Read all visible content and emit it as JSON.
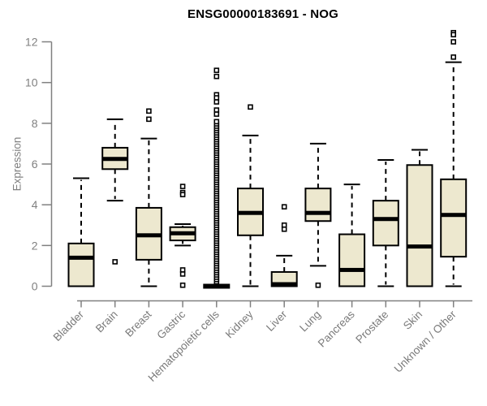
{
  "title": "ENSG00000183691 - NOG",
  "chart_data": {
    "type": "boxplot",
    "title": "ENSG00000183691 - NOG",
    "xlabel": "",
    "ylabel": "Expression",
    "ylim": [
      0,
      12
    ],
    "y_ticks": [
      0,
      2,
      4,
      6,
      8,
      10,
      12
    ],
    "grid": "off",
    "legend": "none",
    "categories": [
      "Bladder",
      "Brain",
      "Breast",
      "Gastric",
      "Hematopoietic cells",
      "Kidney",
      "Liver",
      "Lung",
      "Pancreas",
      "Prostate",
      "Skin",
      "Unknown / Other"
    ],
    "series": [
      {
        "category": "Bladder",
        "whisker_low": 0,
        "q1": 0,
        "median": 1.4,
        "q3": 2.1,
        "whisker_high": 5.3,
        "outliers": []
      },
      {
        "category": "Brain",
        "whisker_low": 4.2,
        "q1": 5.75,
        "median": 6.25,
        "q3": 6.8,
        "whisker_high": 8.2,
        "outliers": [
          1.2
        ]
      },
      {
        "category": "Breast",
        "whisker_low": 0,
        "q1": 1.3,
        "median": 2.5,
        "q3": 3.85,
        "whisker_high": 7.25,
        "outliers": [
          8.6,
          8.2
        ]
      },
      {
        "category": "Gastric",
        "whisker_low": 2.0,
        "q1": 2.25,
        "median": 2.6,
        "q3": 2.9,
        "whisker_high": 3.05,
        "outliers": [
          4.9,
          4.6,
          4.5,
          0.8,
          0.6,
          0.05
        ]
      },
      {
        "category": "Hematopoietic cells",
        "whisker_low": 0,
        "q1": 0,
        "median": 0,
        "q3": 0,
        "whisker_high": 0,
        "outliers": [
          10.6,
          10.3,
          9.4,
          9.25,
          9.05,
          8.65,
          8.45
        ],
        "outlier_strip": {
          "min": 0.22,
          "max": 8.08,
          "count": 72,
          "note": "dense unreadable column of overlapping outlier squares"
        }
      },
      {
        "category": "Kidney",
        "whisker_low": 0,
        "q1": 2.5,
        "median": 3.6,
        "q3": 4.8,
        "whisker_high": 7.4,
        "outliers": [
          8.8
        ]
      },
      {
        "category": "Liver",
        "whisker_low": 0,
        "q1": 0,
        "median": 0.1,
        "q3": 0.7,
        "whisker_high": 1.5,
        "outliers": [
          3.9,
          3.0,
          2.8
        ]
      },
      {
        "category": "Lung",
        "whisker_low": 1.0,
        "q1": 3.2,
        "median": 3.6,
        "q3": 4.8,
        "whisker_high": 7.0,
        "outliers": [
          0.05
        ]
      },
      {
        "category": "Pancreas",
        "whisker_low": 0,
        "q1": 0,
        "median": 0.8,
        "q3": 2.55,
        "whisker_high": 5.0,
        "outliers": []
      },
      {
        "category": "Prostate",
        "whisker_low": 0,
        "q1": 2.0,
        "median": 3.3,
        "q3": 4.2,
        "whisker_high": 6.2,
        "outliers": []
      },
      {
        "category": "Skin",
        "whisker_low": 0,
        "q1": 0,
        "median": 1.95,
        "q3": 5.95,
        "whisker_high": 6.7,
        "outliers": []
      },
      {
        "category": "Unknown / Other",
        "whisker_low": 0,
        "q1": 1.45,
        "median": 3.5,
        "q3": 5.25,
        "whisker_high": 11.0,
        "outliers": [
          12.45,
          12.35,
          12.0,
          11.25
        ]
      }
    ],
    "colors": {
      "box_fill": "#ede8cf",
      "box_stroke": "#000000",
      "median": "#000000",
      "axis": "#808080",
      "tick_label": "#808080",
      "category_label": "#7a7a7a",
      "title": "#000000",
      "background": "#ffffff"
    }
  }
}
